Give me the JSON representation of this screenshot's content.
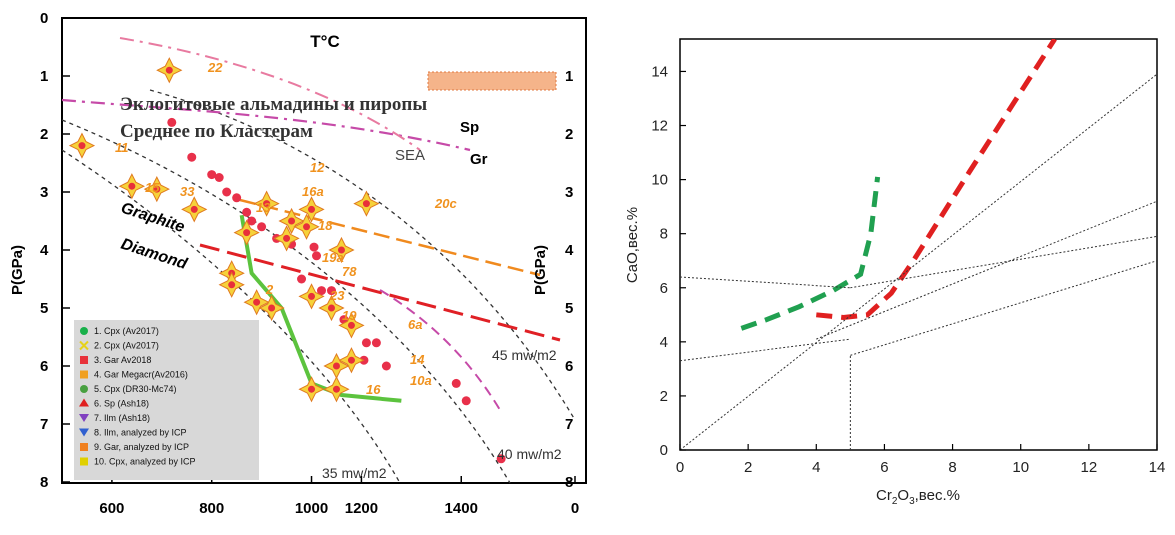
{
  "left": {
    "title": "T°C",
    "ylabel_left": "P(GPa)",
    "ylabel_right": "P(GPa)",
    "x_ticks": [
      "600",
      "800",
      "1000",
      "1200",
      "1400",
      "0"
    ],
    "y_ticks": [
      "0",
      "1",
      "2",
      "3",
      "4",
      "5",
      "6",
      "7",
      "8"
    ],
    "y_ticks_right": [
      "1",
      "2",
      "3",
      "4",
      "5",
      "6",
      "7",
      "8"
    ],
    "heading1": "Эклогитовые альмадины и пиропы",
    "heading2": "Среднее по Кластерам",
    "labels": {
      "sp": "Sp",
      "gr": "Gr",
      "sea": "SEA",
      "graphite": "Graphite",
      "diamond": "Diamond",
      "g35": "35 mw/m2",
      "g40": "40 mw/m2",
      "g45": "45 mw/m2"
    },
    "point_labels": [
      "22",
      "11",
      "15",
      "33",
      "12",
      "16a",
      "13",
      "18",
      "19a",
      "78",
      "2",
      "23",
      "19",
      "6a",
      "14",
      "10a",
      "16",
      "20c"
    ],
    "legend": [
      "1. Cpx (Av2017)",
      "2. Cpx (Av2017)",
      "3. Gar Av2018",
      "4. Gar Megacr(Av2016)",
      "5. Cpx (DR30-Mc74)",
      "6. Sp (Ash18)",
      "7. Ilm (Ash18)",
      "8. Ilm, analyzed by ICP",
      "9. Gar, analyzed by ICP",
      "10. Cpx, analyzed by ICP"
    ],
    "legend_colors": [
      "#18b04a",
      "#e6d21a",
      "#e8323a",
      "#f0a020",
      "#48a040",
      "#e02020",
      "#8040c0",
      "#3060d0",
      "#f08020",
      "#e0d000"
    ],
    "colors": {
      "axes": "#000",
      "green_path": "#5cc33e",
      "red_dash": "#e02025",
      "orange_dash": "#f08a1e",
      "magenta_dash": "#c64aa8",
      "pink_dash": "#e87aa0",
      "pink_points": "#e8304a",
      "point_fill": "#f6d23a",
      "label": "#f0921e"
    }
  },
  "chart_data": [
    {
      "type": "scatter",
      "title": "T°C",
      "xlabel": "",
      "ylabel": "P(GPa)",
      "xlim": [
        500,
        1550
      ],
      "ylim": [
        8.3,
        0
      ],
      "x_tick_labels": [
        600,
        800,
        1000,
        1200,
        1400
      ],
      "geotherms": [
        "35 mw/m2",
        "40 mw/m2",
        "45 mw/m2"
      ],
      "series": [
        {
          "name": "Gar, analyzed by ICP",
          "marker": "diamond-star",
          "points": [
            [
              715,
              0.9
            ],
            [
              540,
              2.2
            ],
            [
              640,
              2.9
            ],
            [
              690,
              2.95
            ],
            [
              765,
              3.3
            ],
            [
              1110,
              3.2
            ],
            [
              870,
              3.7
            ],
            [
              910,
              3.2
            ],
            [
              1000,
              3.3
            ],
            [
              960,
              3.5
            ],
            [
              990,
              3.6
            ],
            [
              950,
              3.8
            ],
            [
              1060,
              4.0
            ],
            [
              840,
              4.4
            ],
            [
              840,
              4.6
            ],
            [
              890,
              4.9
            ],
            [
              920,
              5.0
            ],
            [
              1000,
              4.8
            ],
            [
              1040,
              5.0
            ],
            [
              1080,
              5.3
            ],
            [
              1080,
              5.9
            ],
            [
              1050,
              6.0
            ],
            [
              1000,
              6.4
            ],
            [
              1050,
              6.4
            ]
          ]
        },
        {
          "name": "Gar Av2018",
          "marker": "circle",
          "points": [
            [
              720,
              1.8
            ],
            [
              760,
              2.4
            ],
            [
              800,
              2.7
            ],
            [
              815,
              2.75
            ],
            [
              830,
              3.0
            ],
            [
              850,
              3.1
            ],
            [
              870,
              3.35
            ],
            [
              880,
              3.5
            ],
            [
              900,
              3.6
            ],
            [
              930,
              3.8
            ],
            [
              960,
              3.9
            ],
            [
              1005,
              3.95
            ],
            [
              1010,
              4.1
            ],
            [
              980,
              4.5
            ],
            [
              1020,
              4.7
            ],
            [
              1040,
              4.7
            ],
            [
              1065,
              5.2
            ],
            [
              1110,
              5.6
            ],
            [
              1130,
              5.6
            ],
            [
              1105,
              5.9
            ],
            [
              1150,
              6.0
            ],
            [
              1290,
              6.3
            ],
            [
              1310,
              6.6
            ],
            [
              1380,
              7.6
            ]
          ]
        },
        {
          "name": "Cpx (Av2017)",
          "marker": "line",
          "points": [
            [
              860,
              3.4
            ],
            [
              880,
              4.4
            ],
            [
              940,
              5.0
            ],
            [
              1000,
              6.3
            ],
            [
              1060,
              6.5
            ],
            [
              1180,
              6.6
            ]
          ]
        }
      ]
    },
    {
      "type": "line",
      "title": "",
      "xlabel": "Cr2O3,вес.%",
      "ylabel": "CaO,вес.%",
      "xlim": [
        0,
        14
      ],
      "ylim": [
        0,
        15.2
      ],
      "x_ticks": [
        0,
        2,
        4,
        6,
        8,
        10,
        12,
        14
      ],
      "y_ticks": [
        0,
        2,
        4,
        6,
        8,
        10,
        12,
        14
      ],
      "grid": false,
      "series": [
        {
          "style": "dashed",
          "color": "#20a050",
          "points": [
            [
              1.8,
              4.5
            ],
            [
              2.5,
              4.8
            ],
            [
              3.5,
              5.3
            ],
            [
              4.5,
              5.9
            ],
            [
              5.3,
              6.5
            ],
            [
              5.6,
              8.0
            ],
            [
              5.8,
              10.1
            ]
          ]
        },
        {
          "style": "dashed",
          "color": "#e02020",
          "points": [
            [
              4.0,
              5.0
            ],
            [
              4.8,
              4.9
            ],
            [
              5.5,
              5.0
            ],
            [
              6.2,
              5.8
            ],
            [
              6.9,
              7.1
            ],
            [
              8.5,
              10.3
            ],
            [
              11.0,
              15.2
            ]
          ]
        },
        {
          "style": "dotted",
          "color": "#333",
          "points": [
            [
              0,
              0
            ],
            [
              14,
              13.9
            ]
          ]
        },
        {
          "style": "dotted",
          "color": "#333",
          "points": [
            [
              0,
              6.4
            ],
            [
              5,
              6.0
            ]
          ]
        },
        {
          "style": "dotted",
          "color": "#333",
          "points": [
            [
              0,
              3.3
            ],
            [
              5,
              4.1
            ]
          ]
        },
        {
          "style": "dotted",
          "color": "#333",
          "points": [
            [
              4,
              4.1
            ],
            [
              14,
              9.2
            ]
          ]
        },
        {
          "style": "dotted",
          "color": "#333",
          "points": [
            [
              5,
              6.0
            ],
            [
              14,
              7.9
            ]
          ]
        },
        {
          "style": "dotted",
          "color": "#333",
          "points": [
            [
              5,
              3.5
            ],
            [
              14,
              7.0
            ]
          ]
        },
        {
          "style": "dotted",
          "color": "#333",
          "points": [
            [
              5,
              0
            ],
            [
              5,
              3.5
            ]
          ]
        }
      ]
    }
  ],
  "right": {
    "xlabel_main": "Cr",
    "xlabel_sub1": "2",
    "xlabel_mid": "O",
    "xlabel_sub2": "3",
    "xlabel_tail": ",вес.%",
    "ylabel": "CaO,вес.%"
  }
}
